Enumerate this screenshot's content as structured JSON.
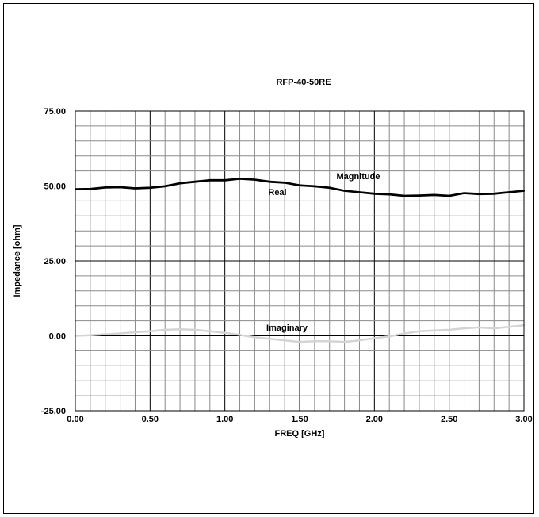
{
  "chart_data": {
    "type": "line",
    "title": "RFP-40-50RE",
    "xlabel": "FREQ [GHz]",
    "ylabel": "Impedance [ohm]",
    "xlim": [
      0,
      3
    ],
    "ylim": [
      -25,
      75
    ],
    "x_ticks": [
      "0.00",
      "0.50",
      "1.00",
      "1.50",
      "2.00",
      "2.50",
      "3.00"
    ],
    "y_ticks": [
      "75.00",
      "50.00",
      "25.00",
      "0.00",
      "-25.00"
    ],
    "grid": true,
    "series": [
      {
        "name": "Magnitude",
        "color": "#000000",
        "x": [
          0.0,
          0.1,
          0.2,
          0.3,
          0.4,
          0.5,
          0.6,
          0.7,
          0.8,
          0.9,
          1.0,
          1.1,
          1.2,
          1.3,
          1.4,
          1.5,
          1.6,
          1.7,
          1.8,
          1.9,
          2.0,
          2.1,
          2.2,
          2.3,
          2.4,
          2.5,
          2.6,
          2.7,
          2.8,
          2.9,
          3.0
        ],
        "y": [
          49.0,
          49.1,
          49.6,
          49.7,
          49.3,
          49.5,
          50.0,
          51.0,
          51.5,
          52.0,
          52.0,
          52.5,
          52.2,
          51.5,
          51.2,
          50.3,
          50.0,
          49.5,
          48.5,
          48.0,
          47.5,
          47.3,
          46.8,
          46.9,
          47.1,
          46.8,
          47.7,
          47.4,
          47.5,
          48.0,
          48.5
        ]
      },
      {
        "name": "Real",
        "color": "#000000",
        "x": [
          0.0,
          0.1,
          0.2,
          0.3,
          0.4,
          0.5,
          0.6,
          0.7,
          0.8,
          0.9,
          1.0,
          1.1,
          1.2,
          1.3,
          1.4,
          1.5,
          1.6,
          1.7,
          1.8,
          1.9,
          2.0,
          2.1,
          2.2,
          2.3,
          2.4,
          2.5,
          2.6,
          2.7,
          2.8,
          2.9,
          3.0
        ],
        "y": [
          48.8,
          48.9,
          49.4,
          49.5,
          49.1,
          49.3,
          49.8,
          50.8,
          51.3,
          51.8,
          51.8,
          52.3,
          52.0,
          51.3,
          51.0,
          50.1,
          49.8,
          49.3,
          48.3,
          47.8,
          47.3,
          47.1,
          46.6,
          46.7,
          46.9,
          46.6,
          47.5,
          47.2,
          47.3,
          47.8,
          48.3
        ]
      },
      {
        "name": "Imaginary",
        "color": "#d4d4d4",
        "x": [
          0.0,
          0.1,
          0.2,
          0.3,
          0.4,
          0.5,
          0.6,
          0.7,
          0.8,
          0.9,
          1.0,
          1.1,
          1.2,
          1.3,
          1.4,
          1.5,
          1.6,
          1.7,
          1.8,
          1.9,
          2.0,
          2.1,
          2.2,
          2.3,
          2.4,
          2.5,
          2.6,
          2.7,
          2.8,
          2.9,
          3.0
        ],
        "y": [
          0.0,
          0.2,
          0.5,
          0.8,
          1.2,
          1.5,
          2.0,
          2.2,
          2.0,
          1.5,
          1.0,
          0.3,
          -0.5,
          -1.0,
          -1.5,
          -2.0,
          -1.8,
          -1.8,
          -2.0,
          -1.5,
          -0.8,
          -0.2,
          0.8,
          1.5,
          1.8,
          2.0,
          2.5,
          2.8,
          2.5,
          3.0,
          3.5
        ]
      }
    ],
    "annotations": [
      {
        "text": "Magnitude"
      },
      {
        "text": "Real"
      },
      {
        "text": "Imaginary"
      }
    ]
  }
}
